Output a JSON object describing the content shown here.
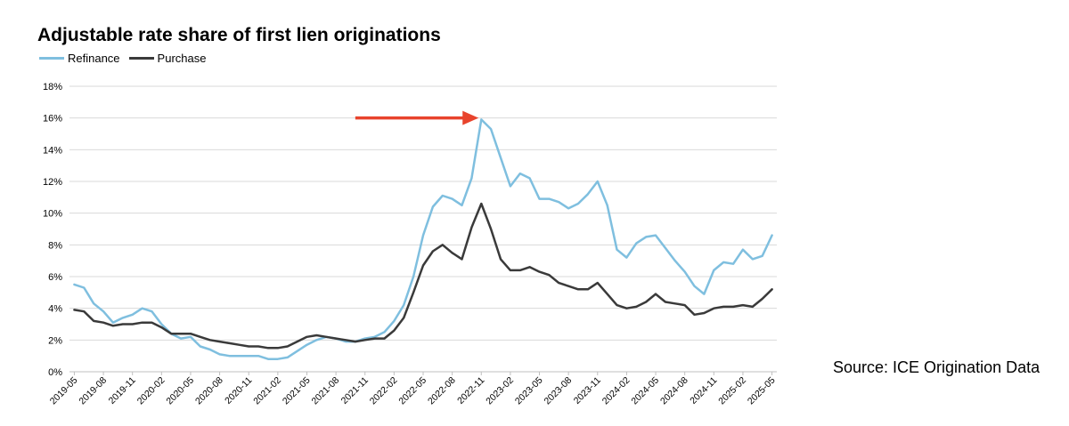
{
  "chart_data": {
    "type": "line",
    "title": "Adjustable rate share of first lien originations",
    "xlabel": "",
    "ylabel": "",
    "ylim": [
      0,
      18
    ],
    "y_ticks": [
      "0%",
      "2%",
      "4%",
      "6%",
      "8%",
      "10%",
      "12%",
      "14%",
      "16%",
      "18%"
    ],
    "x_tick_labels": [
      "2019-05",
      "2019-08",
      "2019-11",
      "2020-02",
      "2020-05",
      "2020-08",
      "2020-11",
      "2021-02",
      "2021-05",
      "2021-08",
      "2021-11",
      "2022-02",
      "2022-05",
      "2022-08",
      "2022-11",
      "2023-02",
      "2023-05",
      "2023-08",
      "2023-11",
      "2024-02",
      "2024-05",
      "2024-08",
      "2024-11",
      "2025-02",
      "2025-05"
    ],
    "grid": "horizontal",
    "legend_position": "top-left",
    "x": [
      "2019-05",
      "2019-06",
      "2019-07",
      "2019-08",
      "2019-09",
      "2019-10",
      "2019-11",
      "2019-12",
      "2020-01",
      "2020-02",
      "2020-03",
      "2020-04",
      "2020-05",
      "2020-06",
      "2020-07",
      "2020-08",
      "2020-09",
      "2020-10",
      "2020-11",
      "2020-12",
      "2021-01",
      "2021-02",
      "2021-03",
      "2021-04",
      "2021-05",
      "2021-06",
      "2021-07",
      "2021-08",
      "2021-09",
      "2021-10",
      "2021-11",
      "2021-12",
      "2022-01",
      "2022-02",
      "2022-03",
      "2022-04",
      "2022-05",
      "2022-06",
      "2022-07",
      "2022-08",
      "2022-09",
      "2022-10",
      "2022-11",
      "2022-12",
      "2023-01",
      "2023-02",
      "2023-03",
      "2023-04",
      "2023-05",
      "2023-06",
      "2023-07",
      "2023-08",
      "2023-09",
      "2023-10",
      "2023-11",
      "2023-12",
      "2024-01",
      "2024-02",
      "2024-03",
      "2024-04",
      "2024-05",
      "2024-06",
      "2024-07",
      "2024-08",
      "2024-09",
      "2024-10",
      "2024-11",
      "2024-12",
      "2025-01",
      "2025-02",
      "2025-03",
      "2025-04",
      "2025-05"
    ],
    "series": [
      {
        "name": "Refinance",
        "color": "#7fbfdf",
        "values": [
          5.5,
          5.3,
          4.3,
          3.8,
          3.1,
          3.4,
          3.6,
          4.0,
          3.8,
          3.0,
          2.4,
          2.1,
          2.2,
          1.6,
          1.4,
          1.1,
          1.0,
          1.0,
          1.0,
          1.0,
          0.8,
          0.8,
          0.9,
          1.3,
          1.7,
          2.0,
          2.2,
          2.1,
          1.9,
          1.9,
          2.1,
          2.2,
          2.5,
          3.2,
          4.2,
          6.0,
          8.6,
          10.4,
          11.1,
          10.9,
          10.5,
          12.2,
          15.9,
          15.3,
          13.5,
          11.7,
          12.5,
          12.2,
          10.9,
          10.9,
          10.7,
          10.3,
          10.6,
          11.2,
          12.0,
          10.5,
          7.7,
          7.2,
          8.1,
          8.5,
          8.6,
          7.8,
          7.0,
          6.3,
          5.4,
          4.9,
          6.4,
          6.9,
          6.8,
          7.7,
          7.1,
          7.3,
          8.6
        ]
      },
      {
        "name": "Purchase",
        "color": "#3a3a3a",
        "values": [
          3.9,
          3.8,
          3.2,
          3.1,
          2.9,
          3.0,
          3.0,
          3.1,
          3.1,
          2.8,
          2.4,
          2.4,
          2.4,
          2.2,
          2.0,
          1.9,
          1.8,
          1.7,
          1.6,
          1.6,
          1.5,
          1.5,
          1.6,
          1.9,
          2.2,
          2.3,
          2.2,
          2.1,
          2.0,
          1.9,
          2.0,
          2.1,
          2.1,
          2.6,
          3.4,
          5.0,
          6.7,
          7.6,
          8.0,
          7.5,
          7.1,
          9.1,
          10.6,
          9.0,
          7.1,
          6.4,
          6.4,
          6.6,
          6.3,
          6.1,
          5.6,
          5.4,
          5.2,
          5.2,
          5.6,
          4.9,
          4.2,
          4.0,
          4.1,
          4.4,
          4.9,
          4.4,
          4.3,
          4.2,
          3.6,
          3.7,
          4.0,
          4.1,
          4.1,
          4.2,
          4.1,
          4.6,
          5.2
        ]
      }
    ],
    "annotations": [
      {
        "type": "arrow",
        "color": "#e8432c",
        "from": {
          "x": "2021-10",
          "y": 16.0
        },
        "to": {
          "x": "2022-11",
          "y": 16.0
        }
      }
    ]
  },
  "source_text": "Source: ICE Origination Data"
}
